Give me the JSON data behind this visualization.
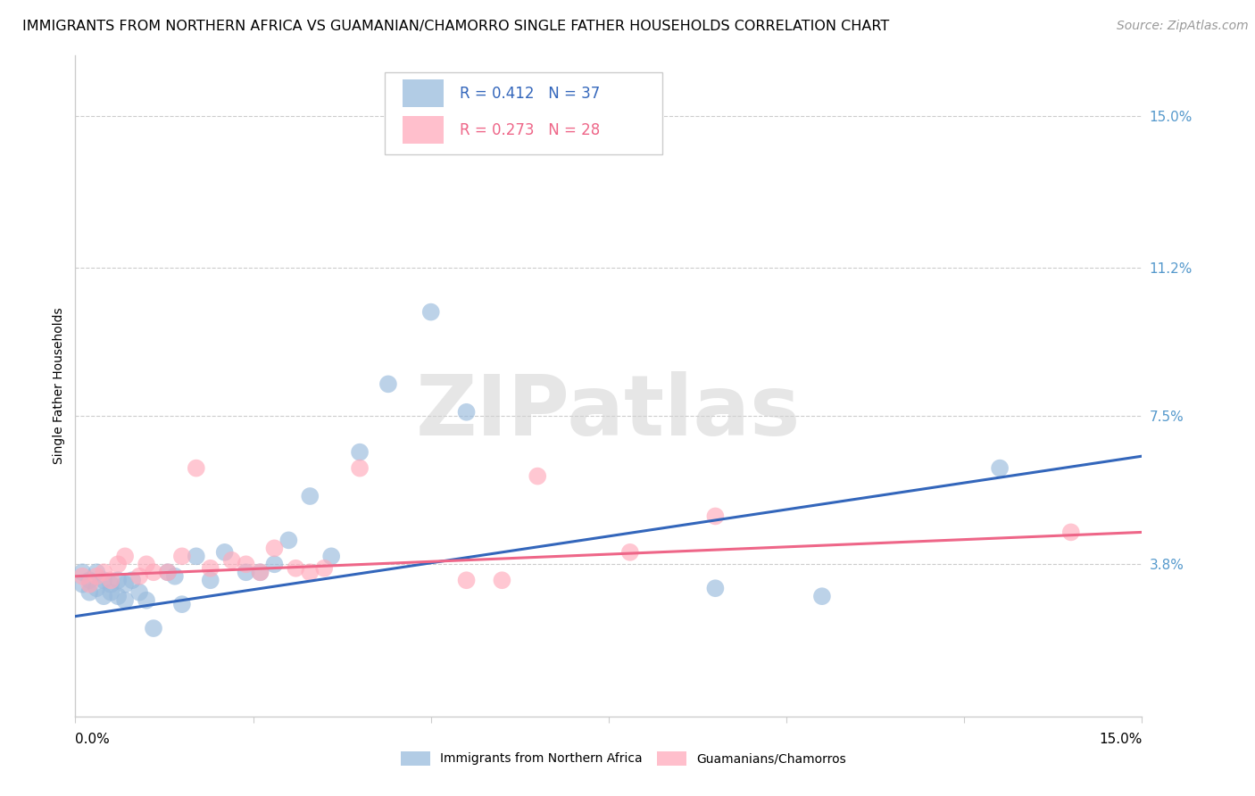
{
  "title": "IMMIGRANTS FROM NORTHERN AFRICA VS GUAMANIAN/CHAMORRO SINGLE FATHER HOUSEHOLDS CORRELATION CHART",
  "source": "Source: ZipAtlas.com",
  "ylabel": "Single Father Households",
  "ytick_labels": [
    "15.0%",
    "11.2%",
    "7.5%",
    "3.8%"
  ],
  "ytick_values": [
    0.15,
    0.112,
    0.075,
    0.038
  ],
  "xlim": [
    0.0,
    0.15
  ],
  "ylim": [
    0.0,
    0.165
  ],
  "legend_blue_R": "R = 0.412",
  "legend_blue_N": "N = 37",
  "legend_pink_R": "R = 0.273",
  "legend_pink_N": "N = 28",
  "blue_color": "#99BBDD",
  "pink_color": "#FFAABB",
  "blue_line_color": "#3366BB",
  "pink_line_color": "#EE6688",
  "background_color": "#FFFFFF",
  "watermark": "ZIPatlas",
  "blue_scatter_x": [
    0.001,
    0.001,
    0.002,
    0.002,
    0.003,
    0.003,
    0.004,
    0.004,
    0.005,
    0.005,
    0.006,
    0.006,
    0.007,
    0.007,
    0.008,
    0.009,
    0.01,
    0.011,
    0.013,
    0.014,
    0.015,
    0.017,
    0.019,
    0.021,
    0.024,
    0.026,
    0.028,
    0.03,
    0.033,
    0.036,
    0.04,
    0.044,
    0.05,
    0.055,
    0.09,
    0.105,
    0.13
  ],
  "blue_scatter_y": [
    0.036,
    0.033,
    0.034,
    0.031,
    0.036,
    0.032,
    0.034,
    0.03,
    0.033,
    0.031,
    0.03,
    0.034,
    0.033,
    0.029,
    0.034,
    0.031,
    0.029,
    0.022,
    0.036,
    0.035,
    0.028,
    0.04,
    0.034,
    0.041,
    0.036,
    0.036,
    0.038,
    0.044,
    0.055,
    0.04,
    0.066,
    0.083,
    0.101,
    0.076,
    0.032,
    0.03,
    0.062
  ],
  "pink_scatter_x": [
    0.001,
    0.002,
    0.003,
    0.004,
    0.005,
    0.006,
    0.007,
    0.009,
    0.01,
    0.011,
    0.013,
    0.015,
    0.017,
    0.019,
    0.022,
    0.024,
    0.026,
    0.028,
    0.031,
    0.033,
    0.035,
    0.04,
    0.055,
    0.06,
    0.065,
    0.078,
    0.09,
    0.14
  ],
  "pink_scatter_y": [
    0.035,
    0.033,
    0.035,
    0.036,
    0.034,
    0.038,
    0.04,
    0.035,
    0.038,
    0.036,
    0.036,
    0.04,
    0.062,
    0.037,
    0.039,
    0.038,
    0.036,
    0.042,
    0.037,
    0.036,
    0.037,
    0.062,
    0.034,
    0.034,
    0.06,
    0.041,
    0.05,
    0.046
  ],
  "blue_line_x": [
    0.0,
    0.15
  ],
  "blue_line_y": [
    0.025,
    0.065
  ],
  "pink_line_x": [
    0.0,
    0.15
  ],
  "pink_line_y": [
    0.035,
    0.046
  ],
  "title_fontsize": 11.5,
  "axis_label_fontsize": 10,
  "tick_fontsize": 11,
  "legend_fontsize": 12,
  "source_fontsize": 10
}
